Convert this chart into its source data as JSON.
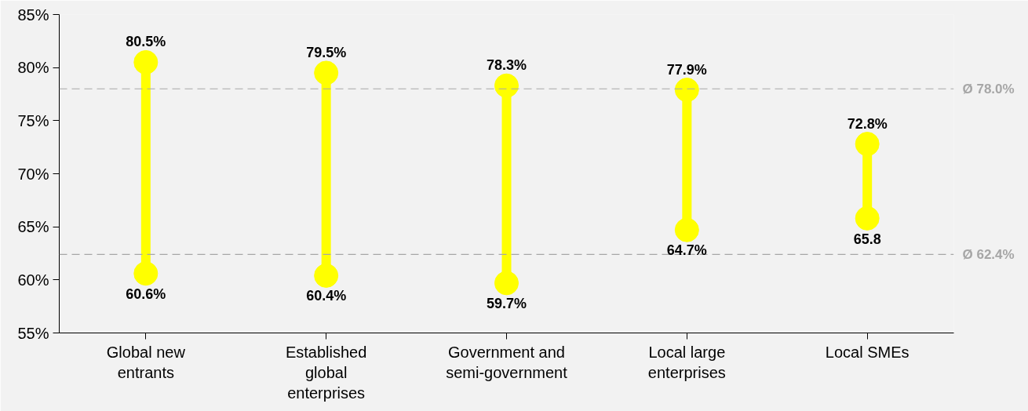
{
  "chart_data": {
    "type": "scatter",
    "categories": [
      "Global new entrants",
      "Established global enterprises",
      "Government and semi-government",
      "Local large enterprises",
      "Local SMEs"
    ],
    "series": [
      {
        "color": "#ffff00",
        "values": [
          80.5,
          79.5,
          78.3,
          77.9,
          72.8
        ],
        "value_labels": [
          "80.5%",
          "79.5%",
          "78.3%",
          "77.9%",
          "72.8%"
        ]
      },
      {
        "color": "#ffff00",
        "values": [
          60.6,
          60.4,
          59.7,
          64.7,
          65.8
        ],
        "value_labels": [
          "60.6%",
          "60.4%",
          "59.7%",
          "64.7%",
          "65.8"
        ]
      }
    ],
    "ylim": [
      55,
      85
    ],
    "yticks": [
      {
        "value": 55,
        "label": "55%"
      },
      {
        "value": 60,
        "label": "60%"
      },
      {
        "value": 65,
        "label": "65%"
      },
      {
        "value": 70,
        "label": "70%"
      },
      {
        "value": 75,
        "label": "75%"
      },
      {
        "value": 80,
        "label": "80%"
      },
      {
        "value": 85,
        "label": "85%"
      }
    ],
    "ref_lines": [
      {
        "axis": "y",
        "value": 78.0,
        "label": "Ø 78.0%",
        "color": "#a6a6a6",
        "line_style": "dashed"
      },
      {
        "axis": "y",
        "value": 62.4,
        "label": "Ø 62.4%",
        "color": "#a6a6a6",
        "line_style": "dashed"
      }
    ],
    "grid": false,
    "marker": "circle"
  }
}
